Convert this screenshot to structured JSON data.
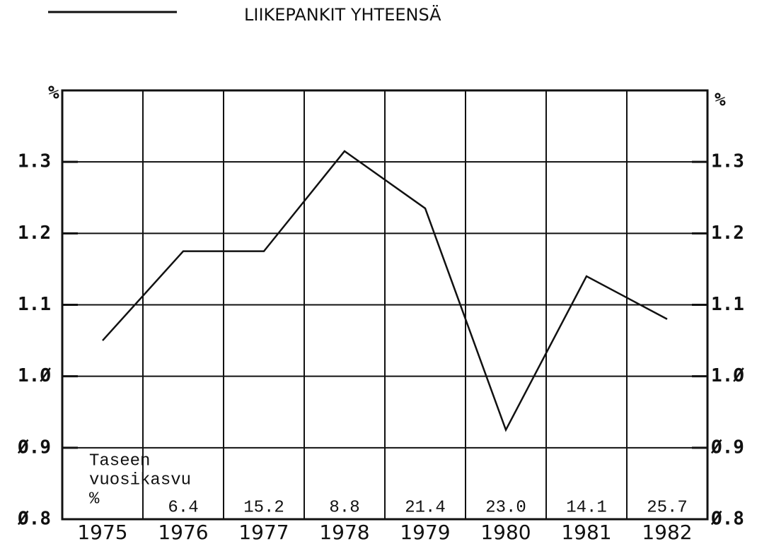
{
  "chart_data": {
    "type": "line",
    "categories": [
      "1975",
      "1976",
      "1977",
      "1978",
      "1979",
      "1980",
      "1981",
      "1982"
    ],
    "series": [
      {
        "name": "LIIKEPANKIT YHTEENSÄ",
        "color": "#111111",
        "values": [
          1.05,
          1.175,
          1.175,
          1.315,
          1.235,
          0.925,
          1.14,
          1.08
        ]
      }
    ],
    "ylabel": "%",
    "y2label": "%",
    "ylim": [
      0.8,
      1.4
    ],
    "yticks": [
      {
        "value": 0.8,
        "label": "Ø.8"
      },
      {
        "value": 0.9,
        "label": "Ø.9"
      },
      {
        "value": 1.0,
        "label": "1.Ø"
      },
      1.1,
      1.2,
      1.3
    ],
    "y2lim": [
      0.8,
      1.4
    ],
    "y2ticks": [
      {
        "value": 0.8,
        "label": "Ø.8"
      },
      {
        "value": 0.9,
        "label": "Ø.9"
      },
      {
        "value": 1.0,
        "label": "1.Ø"
      },
      1.1,
      1.2,
      1.3
    ],
    "grid": true,
    "growth": {
      "label_lines": [
        "Taseen",
        "vuosikasvu",
        "%"
      ],
      "values": [
        null,
        6.4,
        15.2,
        8.8,
        21.4,
        23.0,
        14.1,
        25.7
      ],
      "value_labels": [
        null,
        "6.4",
        "15.2",
        "8.8",
        "21.4",
        "23.0",
        "14.1",
        "25.7"
      ]
    }
  }
}
